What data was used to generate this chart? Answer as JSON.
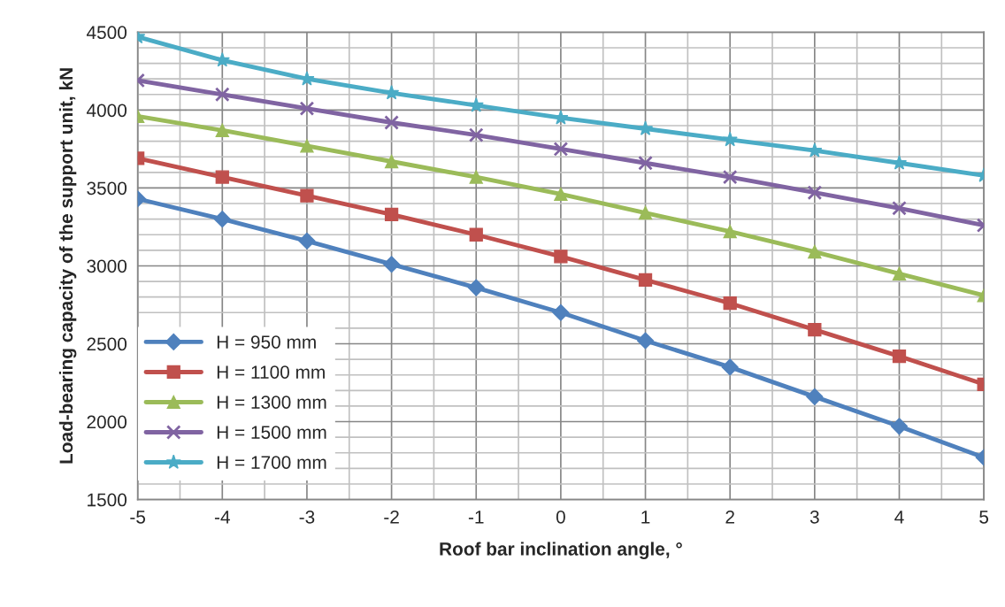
{
  "chart_data": {
    "type": "line",
    "xlabel": "Roof bar inclination angle, °",
    "ylabel": "Load-bearing capacity of the support unit, kN",
    "x": [
      -5,
      -4,
      -3,
      -2,
      -1,
      0,
      1,
      2,
      3,
      4,
      5
    ],
    "series": [
      {
        "name": "H = 950 mm",
        "color": "#4f81bd",
        "marker": "diamond",
        "values": [
          3430,
          3300,
          3160,
          3010,
          2860,
          2700,
          2520,
          2350,
          2160,
          1970,
          1770
        ]
      },
      {
        "name": "H = 1100 mm",
        "color": "#c0504d",
        "marker": "square",
        "values": [
          3690,
          3570,
          3450,
          3330,
          3200,
          3060,
          2910,
          2760,
          2590,
          2420,
          2240
        ]
      },
      {
        "name": "H = 1300 mm",
        "color": "#9bbb59",
        "marker": "triangle",
        "values": [
          3960,
          3870,
          3770,
          3670,
          3570,
          3460,
          3340,
          3220,
          3090,
          2950,
          2810
        ]
      },
      {
        "name": "H = 1500 mm",
        "color": "#8064a2",
        "marker": "cross",
        "values": [
          4190,
          4100,
          4010,
          3920,
          3840,
          3750,
          3660,
          3570,
          3470,
          3370,
          3260
        ]
      },
      {
        "name": "H = 1700 mm",
        "color": "#4bacc6",
        "marker": "star",
        "values": [
          4470,
          4320,
          4200,
          4110,
          4030,
          3950,
          3880,
          3810,
          3740,
          3660,
          3580
        ]
      }
    ],
    "xlim": [
      -5,
      5
    ],
    "xticks": [
      -5,
      -4,
      -3,
      -2,
      -1,
      0,
      1,
      2,
      3,
      4,
      5
    ],
    "ylim": [
      1500,
      4500
    ],
    "yticks": [
      1500,
      2000,
      2500,
      3000,
      3500,
      4000,
      4500
    ],
    "grid": true,
    "legend": "bottom left",
    "line_style": "solid"
  }
}
